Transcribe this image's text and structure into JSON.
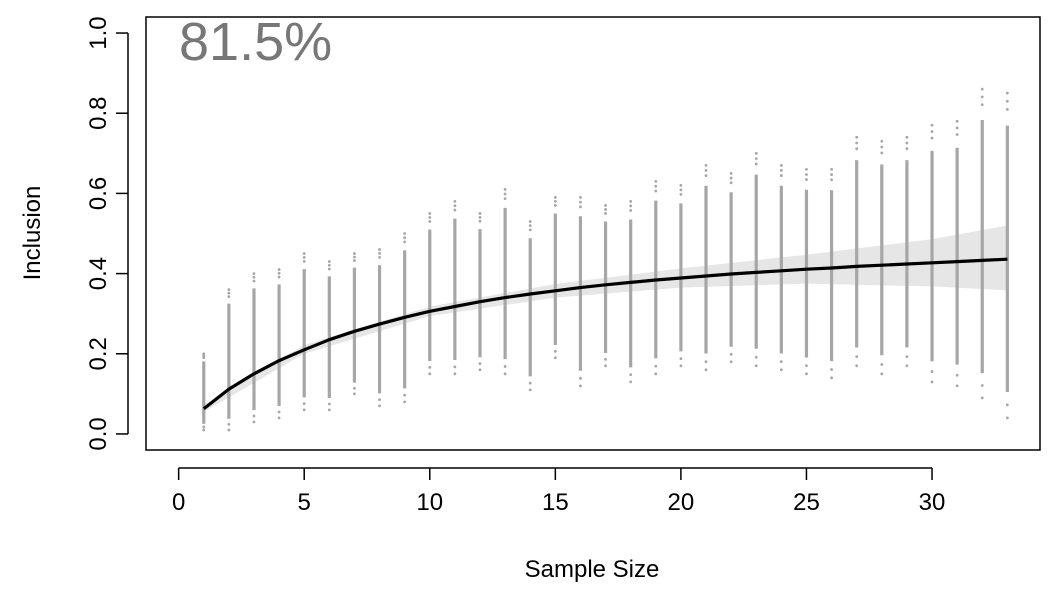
{
  "chart_data": {
    "type": "scatter",
    "annotation": "81.5%",
    "xlabel": "Sample Size",
    "ylabel": "Inclusion",
    "xlim": [
      -1.3,
      34.3
    ],
    "ylim": [
      -0.04,
      1.04
    ],
    "x_ticks": [
      0,
      5,
      10,
      15,
      20,
      25,
      30
    ],
    "y_ticks": [
      0.0,
      0.2,
      0.4,
      0.6,
      0.8,
      1.0
    ],
    "x_tick_labels": [
      "0",
      "5",
      "10",
      "15",
      "20",
      "25",
      "30"
    ],
    "y_tick_labels": [
      "0.0",
      "0.2",
      "0.4",
      "0.6",
      "0.8",
      "1.0"
    ],
    "grid": false,
    "colors": {
      "points": "#a6a6a6",
      "band": "#e6e6e6",
      "curve": "#000000",
      "annotation": "#777777"
    },
    "point_columns": {
      "sample_size": [
        1,
        2,
        3,
        4,
        5,
        6,
        7,
        8,
        9,
        10,
        11,
        12,
        13,
        14,
        15,
        16,
        17,
        18,
        19,
        20,
        21,
        22,
        23,
        24,
        25,
        26,
        27,
        28,
        29,
        30,
        31,
        32,
        33
      ],
      "y_min": [
        0.01,
        0.01,
        0.03,
        0.04,
        0.06,
        0.06,
        0.1,
        0.07,
        0.08,
        0.15,
        0.15,
        0.16,
        0.15,
        0.11,
        0.19,
        0.12,
        0.17,
        0.13,
        0.15,
        0.17,
        0.16,
        0.18,
        0.17,
        0.16,
        0.15,
        0.14,
        0.17,
        0.15,
        0.17,
        0.13,
        0.12,
        0.09,
        0.04
      ],
      "y_max": [
        0.2,
        0.36,
        0.4,
        0.41,
        0.45,
        0.43,
        0.45,
        0.46,
        0.5,
        0.55,
        0.58,
        0.55,
        0.61,
        0.53,
        0.59,
        0.59,
        0.57,
        0.58,
        0.63,
        0.62,
        0.67,
        0.65,
        0.7,
        0.67,
        0.66,
        0.66,
        0.74,
        0.73,
        0.74,
        0.77,
        0.78,
        0.86,
        0.85
      ]
    },
    "series": [
      {
        "x": [
          1,
          2,
          3,
          4,
          5,
          6,
          7,
          8,
          9,
          10,
          11,
          12,
          13,
          14,
          15,
          16,
          17,
          18,
          19,
          20,
          21,
          22,
          23,
          24,
          25,
          26,
          27,
          28,
          29,
          30,
          31,
          32,
          33
        ],
        "values": [
          0.063,
          0.112,
          0.15,
          0.183,
          0.21,
          0.235,
          0.256,
          0.274,
          0.291,
          0.306,
          0.318,
          0.33,
          0.34,
          0.349,
          0.357,
          0.365,
          0.372,
          0.378,
          0.384,
          0.389,
          0.394,
          0.399,
          0.403,
          0.407,
          0.411,
          0.414,
          0.418,
          0.421,
          0.424,
          0.427,
          0.43,
          0.433,
          0.436
        ]
      }
    ],
    "band": {
      "x": [
        1,
        5,
        10,
        15,
        20,
        25,
        30,
        33
      ],
      "lower": [
        0.055,
        0.2,
        0.294,
        0.34,
        0.365,
        0.375,
        0.368,
        0.358
      ],
      "upper": [
        0.072,
        0.222,
        0.318,
        0.374,
        0.413,
        0.447,
        0.486,
        0.52
      ]
    }
  }
}
